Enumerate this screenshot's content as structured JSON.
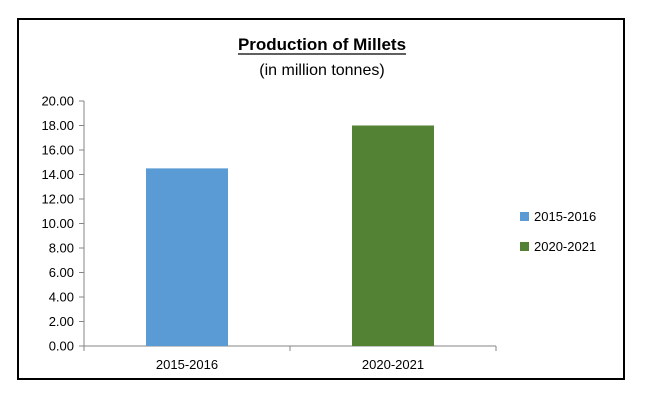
{
  "chart_data": {
    "type": "bar",
    "title": "Production of Millets",
    "subtitle": "(in million tonnes)",
    "categories": [
      "2015-2016",
      "2020-2021"
    ],
    "values": [
      14.5,
      18.0
    ],
    "colors": [
      "#5b9bd5",
      "#548235"
    ],
    "ylim": [
      0,
      20
    ],
    "yticks": [
      "0.00",
      "2.00",
      "4.00",
      "6.00",
      "8.00",
      "10.00",
      "12.00",
      "14.00",
      "16.00",
      "18.00",
      "20.00"
    ],
    "xlabel": "",
    "ylabel": "",
    "grid": false,
    "legend": {
      "position": "right",
      "entries": [
        "2015-2016",
        "2020-2021"
      ]
    }
  }
}
